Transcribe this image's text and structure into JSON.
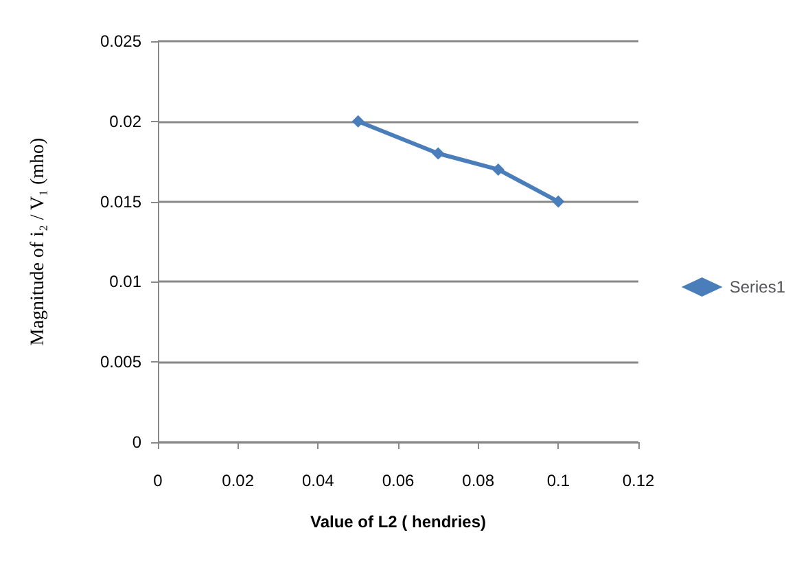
{
  "chart_data": {
    "type": "line",
    "xlabel": "Value of L2 ( hendries)",
    "ylabel": "Magnitude of i₂ / V₁ (mho)",
    "x": [
      0.05,
      0.07,
      0.085,
      0.1
    ],
    "series": [
      {
        "name": "Series1",
        "color": "#4a7ebb",
        "values": [
          0.02,
          0.018,
          0.017,
          0.015
        ]
      }
    ],
    "xlim": [
      0,
      0.12
    ],
    "xticks": [
      0,
      0.02,
      0.04,
      0.06,
      0.08,
      0.1,
      0.12
    ],
    "ylim": [
      0,
      0.025
    ],
    "yticks": [
      0,
      0.005,
      0.01,
      0.015,
      0.02,
      0.025
    ],
    "grid": "y",
    "legend": "right",
    "marker": "diamond",
    "line_style": "solid"
  }
}
